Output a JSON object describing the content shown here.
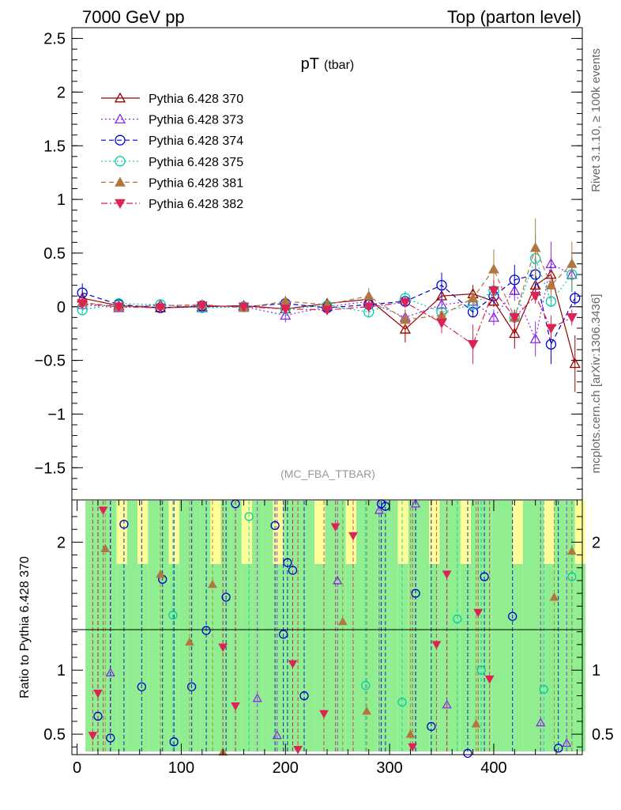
{
  "header": {
    "left": "7000 GeV pp",
    "right": "Top (parton level)"
  },
  "side_labels": {
    "rivet": "Rivet 3.1.10, ≥ 100k events",
    "mcplots": "mcplots.cern.ch [arXiv:1306.3436]"
  },
  "chart_data": [
    {
      "type": "scatter",
      "title_main": "pT",
      "title_sub": "(tbar)",
      "watermark": "(MC_FBA_TTBAR)",
      "ylim": [
        -1.8,
        2.6
      ],
      "xlim": [
        -5,
        485
      ],
      "y_ticks": [
        "2.5",
        "2",
        "1.5",
        "1",
        "0.5",
        "0",
        "−0.5",
        "−1",
        "−1.5"
      ],
      "y_tick_values": [
        2.5,
        2,
        1.5,
        1,
        0.5,
        0,
        -0.5,
        -1,
        -1.5
      ],
      "legend_position": "top-left",
      "series": [
        {
          "name": "Pythia 6.428 370",
          "color": "#990000",
          "marker": "triangle-open",
          "line": "solid",
          "x": [
            5,
            40,
            80,
            120,
            160,
            200,
            240,
            280,
            315,
            350,
            380,
            400,
            420,
            440,
            455,
            478
          ],
          "y": [
            0.08,
            0.01,
            -0.01,
            0.0,
            0.01,
            -0.02,
            0.03,
            0.07,
            -0.21,
            0.1,
            0.12,
            0.05,
            -0.25,
            0.2,
            0.3,
            -0.53
          ]
        },
        {
          "name": "Pythia 6.428 373",
          "color": "#8a2be2",
          "marker": "triangle-open",
          "line": "dotted",
          "x": [
            5,
            40,
            80,
            120,
            160,
            200,
            240,
            280,
            315,
            350,
            380,
            400,
            420,
            440,
            455,
            475
          ],
          "y": [
            0.02,
            -0.01,
            0.02,
            -0.01,
            0.0,
            -0.08,
            0.0,
            0.05,
            -0.1,
            0.02,
            0.05,
            -0.1,
            0.15,
            -0.3,
            0.4,
            0.3
          ]
        },
        {
          "name": "Pythia 6.428 374",
          "color": "#0000cc",
          "marker": "circle-open",
          "line": "dashed",
          "x": [
            5,
            40,
            80,
            120,
            160,
            200,
            240,
            280,
            315,
            350,
            380,
            400,
            420,
            440,
            455,
            478
          ],
          "y": [
            0.13,
            0.02,
            -0.01,
            0.01,
            0.0,
            0.03,
            -0.01,
            0.02,
            0.05,
            0.2,
            -0.05,
            0.1,
            0.25,
            0.3,
            -0.35,
            0.08
          ]
        },
        {
          "name": "Pythia 6.428 375",
          "color": "#00ccaa",
          "marker": "circle-open",
          "line": "dotted",
          "x": [
            5,
            40,
            80,
            120,
            160,
            200,
            240,
            280,
            315,
            350,
            380,
            400,
            420,
            440,
            455,
            475
          ],
          "y": [
            -0.03,
            0.03,
            0.02,
            -0.01,
            0.0,
            -0.02,
            0.01,
            -0.05,
            0.08,
            -0.05,
            0.02,
            0.15,
            -0.1,
            0.45,
            0.05,
            0.3
          ]
        },
        {
          "name": "Pythia 6.428 381",
          "color": "#b07840",
          "marker": "triangle-up-filled",
          "line": "dashed",
          "x": [
            5,
            40,
            80,
            120,
            160,
            200,
            240,
            280,
            315,
            350,
            380,
            400,
            420,
            440,
            455,
            475
          ],
          "y": [
            0.04,
            0.0,
            0.01,
            0.02,
            -0.01,
            0.05,
            0.02,
            0.1,
            -0.12,
            -0.08,
            0.08,
            0.35,
            -0.1,
            0.55,
            0.2,
            0.4
          ]
        },
        {
          "name": "Pythia 6.428 382",
          "color": "#dd2255",
          "marker": "triangle-down-filled",
          "line": "dashdot",
          "x": [
            5,
            40,
            80,
            120,
            160,
            200,
            240,
            280,
            315,
            350,
            380,
            400,
            420,
            440,
            455,
            475
          ],
          "y": [
            0.03,
            0.0,
            -0.01,
            0.01,
            0.0,
            -0.02,
            -0.03,
            0.0,
            0.04,
            -0.15,
            -0.35,
            0.15,
            -0.1,
            0.1,
            -0.2,
            -0.1
          ]
        }
      ]
    },
    {
      "type": "scatter",
      "ylabel": "Ratio to Pythia 6.428 370",
      "ylim": [
        0.34,
        2.33
      ],
      "y_ticks": [
        "2",
        "1",
        "0.5"
      ],
      "y_tick_values": [
        2,
        1,
        0.5
      ],
      "x_ticks": [
        "0",
        "100",
        "200",
        "300",
        "400"
      ],
      "x_tick_values": [
        0,
        100,
        200,
        300,
        400
      ],
      "reference_line": 1,
      "band_colors": {
        "inner": "#90ee90",
        "outer": "#ffff99"
      },
      "series": [
        {
          "name": "Pythia 6.428 373",
          "color": "#8a2be2",
          "marker": "triangle-open",
          "x": [
            32,
            173,
            192,
            250,
            290,
            325,
            355,
            445,
            470
          ],
          "y": [
            0.98,
            0.78,
            0.49,
            1.7,
            2.25,
            2.3,
            0.73,
            0.59,
            0.43
          ]
        },
        {
          "name": "Pythia 6.428 374",
          "color": "#0000cc",
          "marker": "circle-open",
          "x": [
            20,
            32,
            45,
            62,
            82,
            93,
            110,
            124,
            143,
            152,
            190,
            198,
            202,
            207,
            218,
            292,
            296,
            325,
            340,
            375,
            391,
            418,
            462
          ],
          "y": [
            0.64,
            0.47,
            2.14,
            0.87,
            1.71,
            0.44,
            0.87,
            1.31,
            1.57,
            2.3,
            2.13,
            1.28,
            1.84,
            1.78,
            0.8,
            2.3,
            2.28,
            1.6,
            0.56,
            0.35,
            1.73,
            1.42,
            0.39
          ]
        },
        {
          "name": "Pythia 6.428 375",
          "color": "#00ccaa",
          "marker": "circle-open",
          "x": [
            92,
            165,
            277,
            312,
            365,
            388,
            448,
            475
          ],
          "y": [
            1.43,
            2.2,
            0.88,
            0.75,
            1.4,
            1.0,
            0.85,
            1.73
          ]
        },
        {
          "name": "Pythia 6.428 381",
          "color": "#b07840",
          "marker": "triangle-up-filled",
          "x": [
            27,
            80,
            108,
            130,
            140,
            255,
            278,
            320,
            383,
            458,
            475
          ],
          "y": [
            1.95,
            1.75,
            1.22,
            1.67,
            0.36,
            1.38,
            0.68,
            0.5,
            0.58,
            1.57,
            1.93
          ]
        },
        {
          "name": "Pythia 6.428 382",
          "color": "#dd2255",
          "marker": "triangle-down-filled",
          "x": [
            15,
            20,
            25,
            140,
            152,
            207,
            212,
            237,
            248,
            265,
            322,
            345,
            355,
            385,
            396
          ],
          "y": [
            0.49,
            0.82,
            2.25,
            1.18,
            0.72,
            1.05,
            0.38,
            0.66,
            2.12,
            2.05,
            0.4,
            1.2,
            1.75,
            1.45,
            0.93
          ]
        }
      ]
    }
  ]
}
